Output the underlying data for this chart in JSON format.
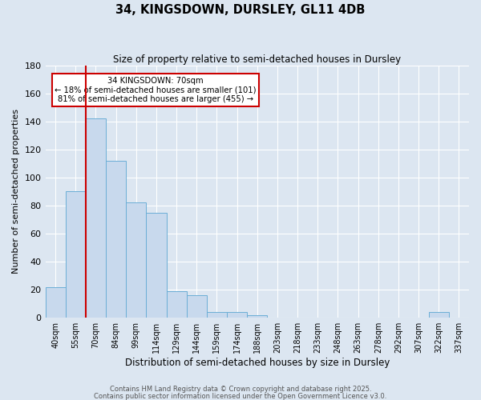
{
  "title": "34, KINGSDOWN, DURSLEY, GL11 4DB",
  "subtitle": "Size of property relative to semi-detached houses in Dursley",
  "xlabel": "Distribution of semi-detached houses by size in Dursley",
  "ylabel": "Number of semi-detached properties",
  "bin_labels": [
    "40sqm",
    "55sqm",
    "70sqm",
    "84sqm",
    "99sqm",
    "114sqm",
    "129sqm",
    "144sqm",
    "159sqm",
    "174sqm",
    "188sqm",
    "203sqm",
    "218sqm",
    "233sqm",
    "248sqm",
    "263sqm",
    "278sqm",
    "292sqm",
    "307sqm",
    "322sqm",
    "337sqm"
  ],
  "bar_heights": [
    22,
    90,
    142,
    112,
    82,
    75,
    19,
    16,
    4,
    4,
    2,
    0,
    0,
    0,
    0,
    0,
    0,
    0,
    0,
    4,
    0
  ],
  "bar_color": "#c8d9ed",
  "bar_edge_color": "#6baed6",
  "background_color": "#dce6f1",
  "plot_bg_color": "#dce6f1",
  "grid_color": "#ffffff",
  "vline_color": "#cc0000",
  "annotation_text": "34 KINGSDOWN: 70sqm\n← 18% of semi-detached houses are smaller (101)\n81% of semi-detached houses are larger (455) →",
  "annotation_box_edgecolor": "#cc0000",
  "ylim": [
    0,
    180
  ],
  "yticks": [
    0,
    20,
    40,
    60,
    80,
    100,
    120,
    140,
    160,
    180
  ],
  "footer1": "Contains HM Land Registry data © Crown copyright and database right 2025.",
  "footer2": "Contains public sector information licensed under the Open Government Licence v3.0."
}
